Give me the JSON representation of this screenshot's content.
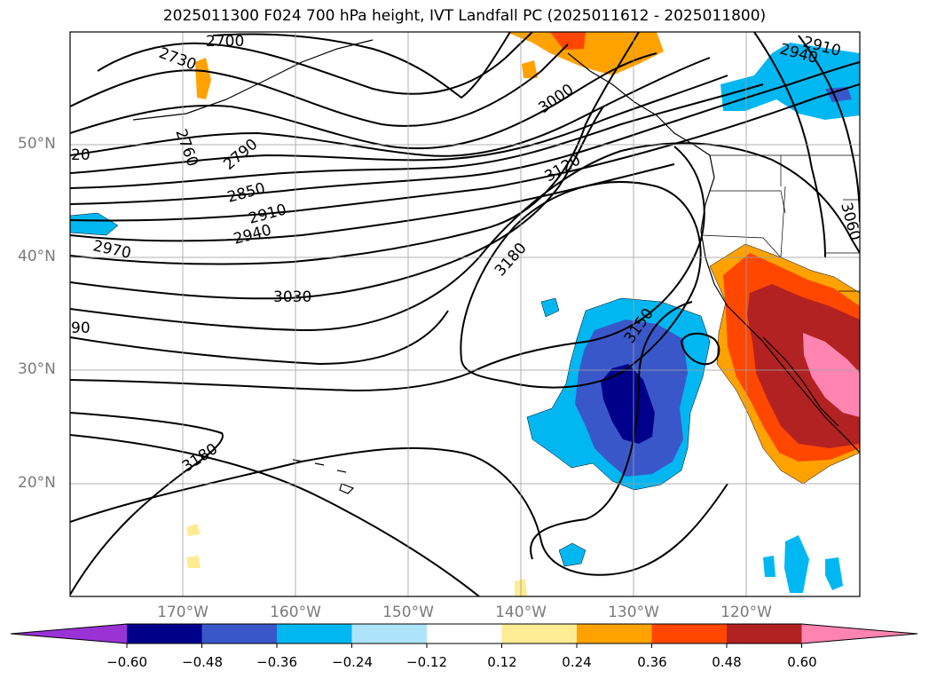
{
  "title": "2025011300 F024 700 hPa height, IVT Landfall PC (2025011612 - 2025011800)",
  "map": {
    "projection": "equirectangular",
    "lon_range": [
      -180,
      -110
    ],
    "lat_range": [
      10,
      60
    ],
    "grid": true,
    "lat_labels": [
      "20°N",
      "30°N",
      "40°N",
      "50°N"
    ],
    "lon_labels": [
      "170°W",
      "160°W",
      "150°W",
      "140°W",
      "130°W",
      "120°W"
    ],
    "contour_field": "700 hPa height",
    "contour_labels": [
      "2700",
      "2730",
      "2760",
      "2790",
      "2850",
      "2910",
      "2940",
      "2970",
      "3030",
      "3000",
      "3120",
      "3180",
      "3150",
      "3180",
      "2910",
      "2940",
      "3060",
      "20",
      "90"
    ],
    "shaded_field": "IVT Landfall PC"
  },
  "colorbar": {
    "ticks": [
      "−0.60",
      "−0.48",
      "−0.36",
      "−0.24",
      "−0.12",
      "0.12",
      "0.24",
      "0.36",
      "0.48",
      "0.60"
    ],
    "colors": [
      "#9a33d6",
      "#00008b",
      "#3a57c9",
      "#00b7f2",
      "#aee4fb",
      "#ffffff",
      "#ffeb93",
      "#ffa200",
      "#ff4700",
      "#b22222",
      "#ff85b0"
    ],
    "extend": "both"
  }
}
